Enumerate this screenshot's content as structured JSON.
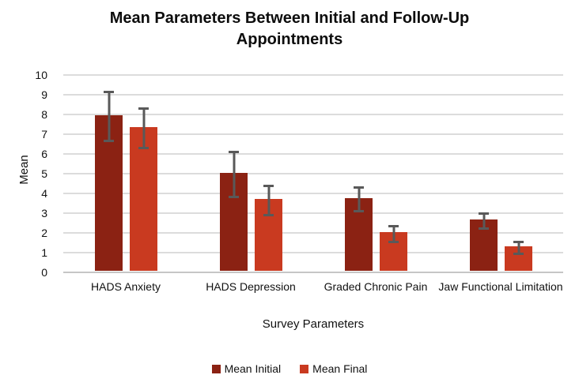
{
  "chart_data": {
    "type": "bar",
    "title": "Mean Parameters Between Initial and Follow-Up Appointments",
    "title_lines": [
      "Mean Parameters Between Initial and Follow-Up",
      "Appointments"
    ],
    "xlabel": "Survey Parameters",
    "ylabel": "Mean",
    "ylim": [
      0,
      10
    ],
    "ytick_step": 1,
    "grid": true,
    "legend_position": "bottom",
    "categories": [
      "HADS Anxiety",
      "HADS Depression",
      "Graded Chronic Pain",
      "Jaw Functional Limitation"
    ],
    "series": [
      {
        "name": "Mean Initial",
        "color": "#8B2213",
        "values": [
          7.9,
          4.95,
          3.7,
          2.6
        ],
        "error_bars": [
          1.3,
          1.2,
          0.65,
          0.45
        ]
      },
      {
        "name": "Mean Final",
        "color": "#C93A20",
        "values": [
          7.3,
          3.65,
          1.95,
          1.25
        ],
        "error_bars": [
          1.05,
          0.8,
          0.45,
          0.35
        ]
      }
    ],
    "error_bar_color": "#595959",
    "gridline_color": "#DCDCDC"
  }
}
